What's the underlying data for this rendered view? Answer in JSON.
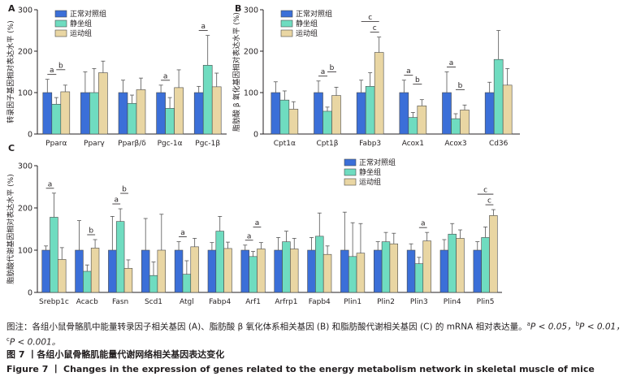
{
  "colors": {
    "control": "#3b6fd8",
    "sedentary": "#6fdcc0",
    "exercise": "#e9d6a3"
  },
  "legend": [
    "正常对照组",
    "静坐组",
    "运动组"
  ],
  "chart_data": [
    {
      "panel": "A",
      "type": "bar",
      "ylabel": "转录因子基因相对表达水平 (%)",
      "ylim": [
        0,
        300
      ],
      "yticks": [
        0,
        100,
        200,
        300
      ],
      "categories": [
        "Pparα",
        "Pparγ",
        "Pparβ/δ",
        "Pgc-1α",
        "Pgc-1β"
      ],
      "series": [
        {
          "name": "正常对照组",
          "values": [
            100,
            100,
            100,
            100,
            100
          ],
          "err": [
            32,
            50,
            30,
            18,
            15
          ]
        },
        {
          "name": "静坐组",
          "values": [
            72,
            100,
            74,
            62,
            166
          ],
          "err": [
            16,
            58,
            20,
            26,
            72
          ]
        },
        {
          "name": "运动组",
          "values": [
            102,
            148,
            107,
            112,
            114
          ],
          "err": [
            16,
            28,
            28,
            43,
            33
          ]
        }
      ],
      "sig": [
        {
          "cat": 0,
          "from": 0,
          "to": 1,
          "label": "a",
          "level": 0
        },
        {
          "cat": 0,
          "from": 1,
          "to": 2,
          "label": "b",
          "level": 1
        },
        {
          "cat": 3,
          "from": 0,
          "to": 1,
          "label": "a",
          "level": 0
        },
        {
          "cat": 4,
          "from": 0,
          "to": 1,
          "label": "a",
          "level": 0
        }
      ]
    },
    {
      "panel": "B",
      "type": "bar",
      "ylabel": "脂肪酸 β 氧化基因相对表达水平 (%)",
      "ylim": [
        0,
        300
      ],
      "yticks": [
        0,
        100,
        200,
        300
      ],
      "categories": [
        "Cpt1α",
        "Cpt1β",
        "Fabp3",
        "Acox1",
        "Acox3",
        "Cd36"
      ],
      "series": [
        {
          "name": "正常对照组",
          "values": [
            100,
            100,
            100,
            100,
            100,
            100
          ],
          "err": [
            26,
            28,
            30,
            30,
            50,
            25
          ]
        },
        {
          "name": "静坐组",
          "values": [
            82,
            55,
            115,
            40,
            37,
            180
          ],
          "err": [
            22,
            10,
            33,
            12,
            12,
            70
          ]
        },
        {
          "name": "运动组",
          "values": [
            60,
            93,
            197,
            68,
            58,
            118
          ],
          "err": [
            18,
            20,
            37,
            15,
            12,
            40
          ]
        }
      ],
      "sig": [
        {
          "cat": 1,
          "from": 0,
          "to": 1,
          "label": "a",
          "level": 0
        },
        {
          "cat": 1,
          "from": 1,
          "to": 2,
          "label": "b",
          "level": 1
        },
        {
          "cat": 2,
          "from": 1,
          "to": 2,
          "label": "c",
          "level": 0
        },
        {
          "cat": 2,
          "from": 0,
          "to": 2,
          "label": "c",
          "level": 1
        },
        {
          "cat": 3,
          "from": 0,
          "to": 1,
          "label": "a",
          "level": 0
        },
        {
          "cat": 3,
          "from": 1,
          "to": 2,
          "label": "b",
          "level": 1
        },
        {
          "cat": 4,
          "from": 0,
          "to": 1,
          "label": "a",
          "level": 0
        },
        {
          "cat": 4,
          "from": 1,
          "to": 2,
          "label": "b",
          "level": 1
        }
      ]
    },
    {
      "panel": "C",
      "type": "bar",
      "ylabel": "脂肪酸代谢基因相对表达水平 (%)",
      "ylim": [
        0,
        300
      ],
      "yticks": [
        0,
        100,
        200,
        300
      ],
      "categories": [
        "Srebp1c",
        "Acacb",
        "Fasn",
        "Scd1",
        "Atgl",
        "Fabp4",
        "Arf1",
        "Arfrp1",
        "Fapb4",
        "Plin1",
        "Plin2",
        "Plin3",
        "Plin4",
        "Plin5"
      ],
      "series": [
        {
          "name": "正常对照组",
          "values": [
            100,
            100,
            100,
            100,
            100,
            100,
            100,
            100,
            100,
            100,
            100,
            100,
            100,
            100
          ],
          "err": [
            10,
            70,
            80,
            75,
            20,
            18,
            12,
            30,
            30,
            90,
            20,
            15,
            25,
            20
          ]
        },
        {
          "name": "静坐组",
          "values": [
            178,
            50,
            168,
            40,
            43,
            145,
            85,
            120,
            133,
            85,
            120,
            68,
            138,
            130
          ],
          "err": [
            57,
            15,
            30,
            32,
            32,
            35,
            12,
            25,
            55,
            80,
            22,
            15,
            25,
            25
          ]
        },
        {
          "name": "运动组",
          "values": [
            78,
            105,
            57,
            100,
            108,
            104,
            103,
            103,
            90,
            93,
            115,
            122,
            128,
            182
          ],
          "err": [
            28,
            20,
            20,
            85,
            20,
            15,
            15,
            25,
            20,
            70,
            25,
            20,
            20,
            14
          ]
        }
      ],
      "sig": [
        {
          "cat": 0,
          "from": 0,
          "to": 1,
          "label": "a",
          "level": 0
        },
        {
          "cat": 1,
          "from": 1,
          "to": 2,
          "label": "b",
          "level": 0
        },
        {
          "cat": 2,
          "from": 0,
          "to": 1,
          "label": "a",
          "level": 0
        },
        {
          "cat": 2,
          "from": 1,
          "to": 2,
          "label": "b",
          "level": 1
        },
        {
          "cat": 4,
          "from": 0,
          "to": 1,
          "label": "a",
          "level": 0
        },
        {
          "cat": 6,
          "from": 0,
          "to": 1,
          "label": "a",
          "level": 0
        },
        {
          "cat": 6,
          "from": 1,
          "to": 2,
          "label": "a",
          "level": 1
        },
        {
          "cat": 11,
          "from": 1,
          "to": 2,
          "label": "a",
          "level": 0
        },
        {
          "cat": 13,
          "from": 1,
          "to": 2,
          "label": "c",
          "level": 0
        },
        {
          "cat": 13,
          "from": 0,
          "to": 2,
          "label": "c",
          "level": 1
        }
      ]
    }
  ],
  "note": {
    "prefix": "图注：各组小鼠骨骼肌中能量转录因子相关基因 (A)、脂肪酸 β 氧化体系相关基因 (B) 和脂肪酸代谢相关基因 (C) 的 mRNA 相对表达量。",
    "a_sup": "a",
    "a_text": "P < 0.05，",
    "b_sup": "b",
    "b_text": "P < 0.01，",
    "c_sup": "c",
    "c_text": "P < 0.001。"
  },
  "caption_cn": "图 7 丨各组小鼠骨骼肌能量代谢网络相关基因表达变化",
  "caption_en": "Figure 7 丨 Changes in the expression of genes related to the energy metabolism network in skeletal muscle of mice"
}
